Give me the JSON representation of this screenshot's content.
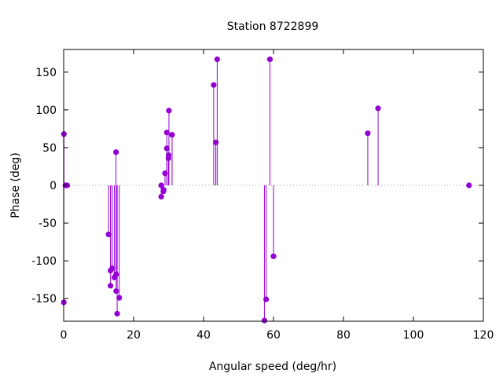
{
  "chart_data": {
    "type": "scatter",
    "style": "impulses-with-points",
    "title": "Station 8722899",
    "xlabel": "Angular speed (deg/hr)",
    "ylabel": "Phase (deg)",
    "xlim": [
      0,
      120
    ],
    "ylim": [
      -180,
      180
    ],
    "xticks": [
      0,
      20,
      40,
      60,
      80,
      100,
      120
    ],
    "yticks": [
      -150,
      -100,
      -50,
      0,
      50,
      100,
      150
    ],
    "grid": false,
    "legend": "none",
    "color": "#9400d3",
    "series": [
      {
        "points": [
          [
            0.04,
            -155
          ],
          [
            0.08,
            68
          ],
          [
            0.5,
            0
          ],
          [
            1.0,
            0
          ],
          [
            12.85,
            -65
          ],
          [
            13.4,
            -133
          ],
          [
            13.4,
            -113
          ],
          [
            13.9,
            -110
          ],
          [
            14.5,
            -122
          ],
          [
            14.96,
            44
          ],
          [
            15.0,
            -118
          ],
          [
            15.0,
            -140
          ],
          [
            15.3,
            -170
          ],
          [
            15.9,
            -149
          ],
          [
            27.9,
            0
          ],
          [
            27.9,
            -15
          ],
          [
            28.5,
            -8
          ],
          [
            28.6,
            -6
          ],
          [
            28.98,
            16
          ],
          [
            29.5,
            49
          ],
          [
            29.5,
            70
          ],
          [
            29.96,
            36
          ],
          [
            30.0,
            40
          ],
          [
            30.1,
            99
          ],
          [
            31.0,
            67
          ],
          [
            42.9,
            133
          ],
          [
            43.5,
            57
          ],
          [
            43.9,
            167
          ],
          [
            57.4,
            -179
          ],
          [
            57.9,
            -151
          ],
          [
            58.98,
            167
          ],
          [
            60.0,
            -94
          ],
          [
            86.95,
            69
          ],
          [
            89.9,
            102
          ],
          [
            115.9,
            0
          ]
        ]
      }
    ]
  }
}
